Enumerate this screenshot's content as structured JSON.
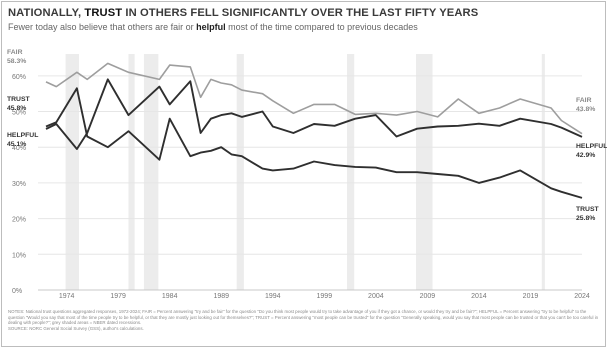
{
  "title_parts": [
    "NATIONALLY, ",
    "TRUST",
    " IN OTHERS FELL SIGNIFICANTLY OVER THE LAST FIFTY YEARS"
  ],
  "subtitle_parts": [
    "Fewer today also believe that others are fair or ",
    "helpful",
    " most of the time compared to previous decades"
  ],
  "notes": [
    "NOTES: National trust questions aggregated responses, 1972-2024; FAIR = Percent answering \"try and be fair\" for the question \"Do you think most people would try to take advantage of you if they got a chance, or would they try and be fair?\"; HELPFUL = Percent answering \"try to be helpful\" to the question \"Would you say that most of the time people try to be helpful, or that they are mostly just looking out for themselves?\"; TRUST = Percent answering \"most people can be trusted\" for the question \"Generally speaking, would you say that most people can be trusted or that you can't be too careful in dealing with people?\"; grey shaded areas = NBER dated recessions.",
    "SOURCE: NORC General Social Survey (GSS), author's calculations."
  ],
  "chart_data": {
    "type": "line",
    "title": "NATIONALLY, TRUST IN OTHERS FELL SIGNIFICANTLY OVER THE LAST FIFTY YEARS",
    "subtitle": "Fewer today also believe that others are fair or helpful most of the time compared to previous decades",
    "xlim": [
      1972,
      2024
    ],
    "ylim": [
      0,
      0.65
    ],
    "x_ticks": [
      1974,
      1979,
      1984,
      1989,
      1994,
      1999,
      2004,
      2009,
      2014,
      2019,
      2024
    ],
    "y_ticks": [
      0,
      0.1,
      0.2,
      0.3,
      0.4,
      0.5,
      0.6
    ],
    "y_tick_labels": [
      "0%",
      "10%",
      "20%",
      "30%",
      "40%",
      "50%",
      "60%"
    ],
    "grid": "horizontal",
    "recessions": [
      [
        1973.9,
        1975.2
      ],
      [
        1980.0,
        1980.6
      ],
      [
        1981.5,
        1982.9
      ],
      [
        1990.5,
        1991.2
      ],
      [
        2001.2,
        2001.9
      ],
      [
        2007.9,
        2009.5
      ],
      [
        2020.1,
        2020.4
      ]
    ],
    "series": [
      {
        "name": "FAIR",
        "color": "#9e9e9e",
        "start_label": "FAIR",
        "start_value": "58.3%",
        "end_label": "FAIR",
        "end_value": "43.8%",
        "x": [
          1972,
          1973,
          1975,
          1976,
          1978,
          1980,
          1983,
          1984,
          1986,
          1987,
          1988,
          1989,
          1990,
          1991,
          1993,
          1994,
          1996,
          1998,
          2000,
          2002,
          2004,
          2006,
          2008,
          2010,
          2012,
          2014,
          2016,
          2018,
          2021,
          2022,
          2024
        ],
        "y": [
          0.583,
          0.57,
          0.61,
          0.59,
          0.635,
          0.61,
          0.59,
          0.63,
          0.625,
          0.54,
          0.59,
          0.58,
          0.575,
          0.56,
          0.55,
          0.53,
          0.495,
          0.52,
          0.52,
          0.492,
          0.495,
          0.49,
          0.5,
          0.485,
          0.535,
          0.495,
          0.51,
          0.535,
          0.51,
          0.475,
          0.438
        ]
      },
      {
        "name": "HELPFUL",
        "color": "#2f2f2f",
        "start_label": "HELPFUL",
        "start_value": "45.1%",
        "end_label": "HELPFUL",
        "end_value": "42.9%",
        "x": [
          1972,
          1973,
          1975,
          1976,
          1978,
          1980,
          1983,
          1984,
          1986,
          1987,
          1988,
          1989,
          1990,
          1991,
          1993,
          1994,
          1996,
          1998,
          2000,
          2002,
          2004,
          2006,
          2008,
          2010,
          2012,
          2014,
          2016,
          2018,
          2021,
          2022,
          2024
        ],
        "y": [
          0.451,
          0.465,
          0.395,
          0.44,
          0.59,
          0.49,
          0.57,
          0.52,
          0.585,
          0.44,
          0.48,
          0.49,
          0.495,
          0.485,
          0.5,
          0.458,
          0.44,
          0.465,
          0.46,
          0.48,
          0.49,
          0.43,
          0.452,
          0.458,
          0.46,
          0.466,
          0.46,
          0.48,
          0.465,
          0.455,
          0.429
        ]
      },
      {
        "name": "TRUST",
        "color": "#2f2f2f",
        "start_label": "TRUST",
        "start_value": "45.8%",
        "end_label": "TRUST",
        "end_value": "25.8%",
        "x": [
          1972,
          1973,
          1975,
          1976,
          1978,
          1980,
          1983,
          1984,
          1986,
          1987,
          1988,
          1989,
          1990,
          1991,
          1993,
          1994,
          1996,
          1998,
          2000,
          2002,
          2004,
          2006,
          2008,
          2010,
          2012,
          2014,
          2016,
          2018,
          2021,
          2022,
          2024
        ],
        "y": [
          0.458,
          0.47,
          0.565,
          0.43,
          0.4,
          0.445,
          0.365,
          0.48,
          0.375,
          0.385,
          0.39,
          0.4,
          0.38,
          0.375,
          0.34,
          0.335,
          0.34,
          0.36,
          0.35,
          0.345,
          0.343,
          0.33,
          0.33,
          0.325,
          0.32,
          0.3,
          0.315,
          0.335,
          0.285,
          0.275,
          0.258
        ]
      }
    ]
  }
}
